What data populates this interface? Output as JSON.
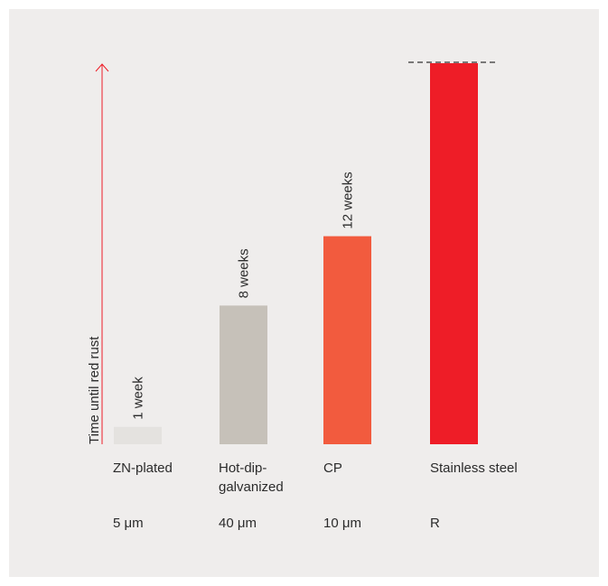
{
  "chart_data": {
    "type": "bar",
    "ylabel": "Time until red rust",
    "categories": [
      "ZN-plated",
      "Hot-dip-galvanized",
      "CP",
      "Stainless steel"
    ],
    "thickness": [
      "5 μm",
      "40 μm",
      "10 μm",
      "R"
    ],
    "values": [
      1,
      8,
      12,
      null
    ],
    "value_labels": [
      "1 week",
      "8 weeks",
      "12 weeks",
      ""
    ],
    "colors": [
      "#e4e2df",
      "#c6c1b9",
      "#f25b3e",
      "#ee1d27"
    ],
    "axis_color": "#ee1d27",
    "notes": "Stainless steel bar extends to top of axis with dashed line, indicating beyond scale"
  }
}
